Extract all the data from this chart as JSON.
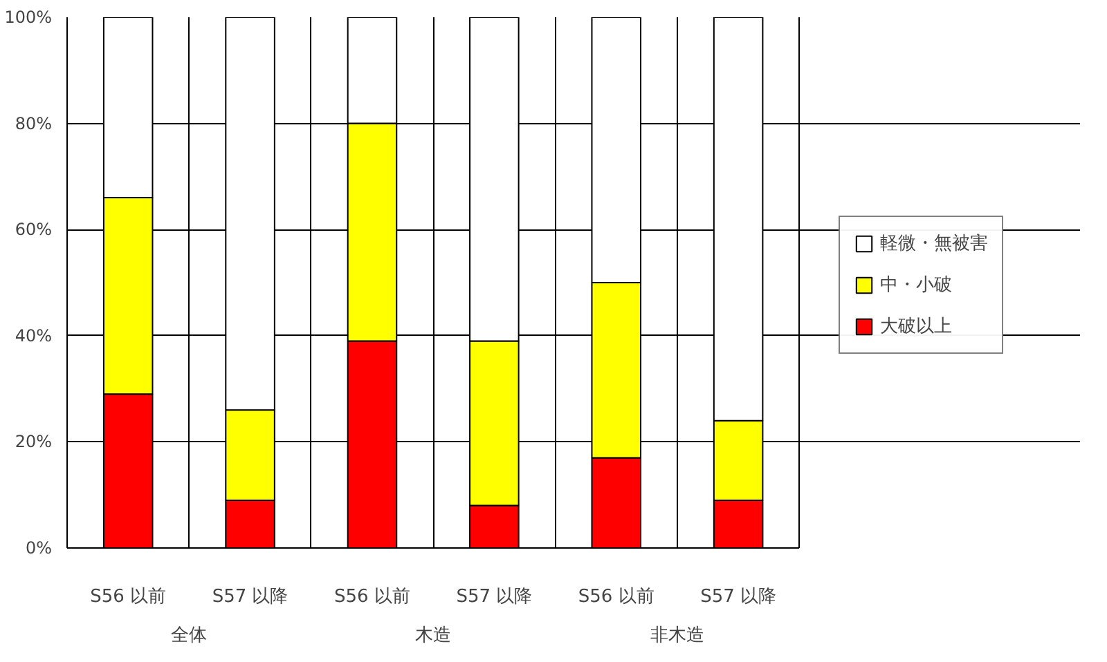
{
  "chart_data": {
    "type": "bar",
    "stacked": true,
    "categories": [
      "S56 以前",
      "S57 以降",
      "S56 以前",
      "S57 以降",
      "S56 以前",
      "S57 以降"
    ],
    "series": [
      {
        "name": "大破以上",
        "color": "#ff0000",
        "values": [
          29,
          9,
          39,
          8,
          17,
          9
        ]
      },
      {
        "name": "中・小破",
        "color": "#ffff00",
        "values": [
          37,
          17,
          41,
          31,
          33,
          15
        ]
      },
      {
        "name": "軽微・無被害",
        "color": "#ffffff",
        "values": [
          34,
          74,
          20,
          61,
          50,
          76
        ]
      }
    ],
    "annotations": [
      "全体",
      "木造",
      "非木造"
    ],
    "ylim": [
      0,
      100
    ],
    "yticks": [
      {
        "value": 0,
        "label": "0%"
      },
      {
        "value": 20,
        "label": "20%"
      },
      {
        "value": 40,
        "label": "40%"
      },
      {
        "value": 60,
        "label": "60%"
      },
      {
        "value": 80,
        "label": "80%"
      },
      {
        "value": 100,
        "label": "100%"
      }
    ],
    "grid": true,
    "legend": "right"
  }
}
